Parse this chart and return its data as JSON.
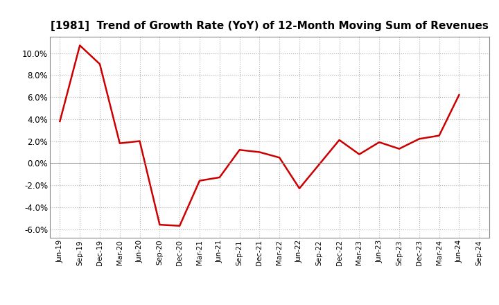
{
  "title": "[1981]  Trend of Growth Rate (YoY) of 12-Month Moving Sum of Revenues",
  "title_fontsize": 11,
  "line_color": "#cc0000",
  "line_width": 1.8,
  "background_color": "#ffffff",
  "plot_bg_color": "#ffffff",
  "grid_color": "#aaaaaa",
  "ylim": [
    -0.068,
    0.115
  ],
  "yticks": [
    -0.06,
    -0.04,
    -0.02,
    0.0,
    0.02,
    0.04,
    0.06,
    0.08,
    0.1
  ],
  "x_labels": [
    "Jun-19",
    "Sep-19",
    "Dec-19",
    "Mar-20",
    "Jun-20",
    "Sep-20",
    "Dec-20",
    "Mar-21",
    "Jun-21",
    "Sep-21",
    "Dec-21",
    "Mar-22",
    "Jun-22",
    "Sep-22",
    "Dec-22",
    "Mar-23",
    "Jun-23",
    "Sep-23",
    "Dec-23",
    "Mar-24",
    "Jun-24",
    "Sep-24"
  ],
  "values": [
    0.038,
    0.107,
    0.09,
    0.018,
    0.02,
    -0.056,
    -0.057,
    -0.016,
    -0.013,
    0.012,
    0.01,
    0.005,
    -0.023,
    -0.001,
    0.021,
    0.008,
    0.019,
    0.013,
    0.022,
    0.025,
    0.062,
    null
  ]
}
